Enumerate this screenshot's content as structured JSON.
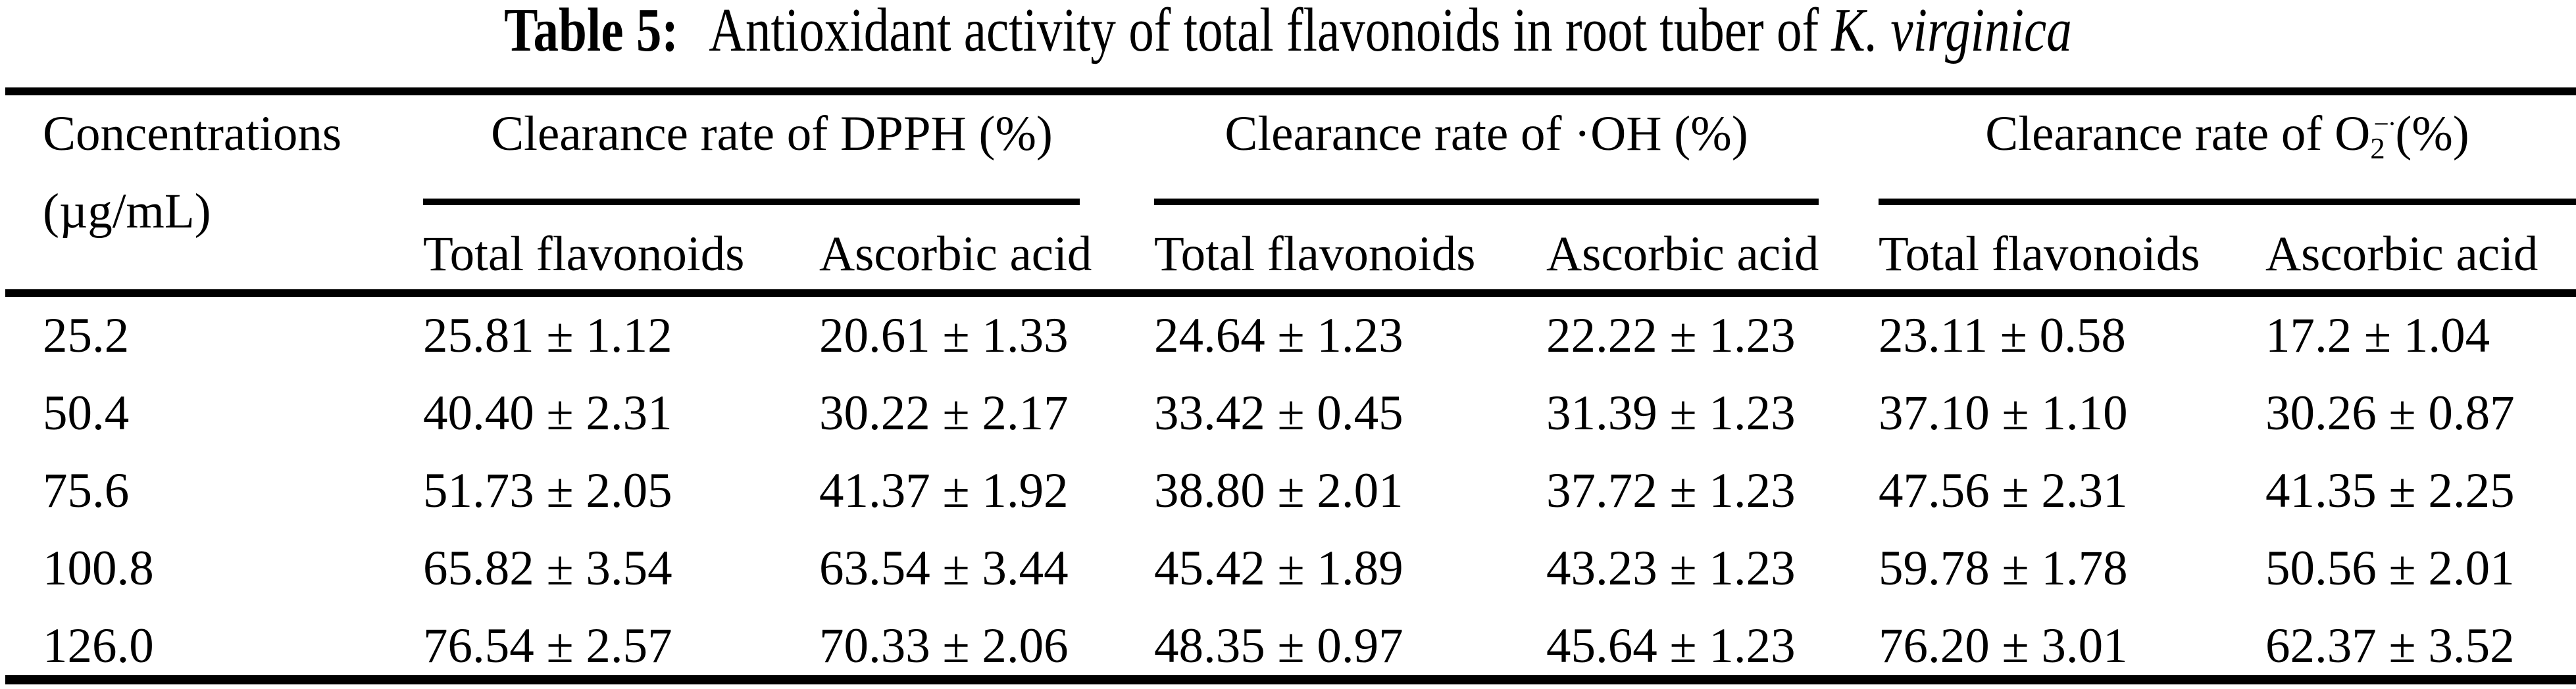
{
  "title": {
    "label": "Table 5:",
    "text": "Antioxidant activity of total flavonoids in root tuber of",
    "species": "K. virginica"
  },
  "table": {
    "concentration_header": {
      "line1": "Concentrations",
      "line2": "(µg/mL)"
    },
    "groups": {
      "dpph": {
        "label": "Clearance rate of DPPH (%)"
      },
      "oh": {
        "label": "Clearance rate of ·OH (%)"
      },
      "o2": {
        "prefix": "Clearance rate of O",
        "sub": "2",
        "sup": "−·",
        "suffix": "(%)"
      }
    },
    "subheaders": {
      "total_flavonoids": "Total flavonoids",
      "ascorbic_acid": "Ascorbic acid"
    },
    "rows": [
      {
        "conc": "25.2",
        "dpph_tf": "25.81 ± 1.12",
        "dpph_aa": "20.61 ± 1.33",
        "oh_tf": "24.64 ± 1.23",
        "oh_aa": "22.22 ± 1.23",
        "o2_tf": "23.11 ± 0.58",
        "o2_aa": "17.2 ± 1.04"
      },
      {
        "conc": "50.4",
        "dpph_tf": "40.40 ± 2.31",
        "dpph_aa": "30.22 ± 2.17",
        "oh_tf": "33.42 ± 0.45",
        "oh_aa": "31.39 ± 1.23",
        "o2_tf": "37.10 ± 1.10",
        "o2_aa": "30.26 ± 0.87"
      },
      {
        "conc": "75.6",
        "dpph_tf": "51.73 ± 2.05",
        "dpph_aa": "41.37 ± 1.92",
        "oh_tf": "38.80 ± 2.01",
        "oh_aa": "37.72 ± 1.23",
        "o2_tf": "47.56 ± 2.31",
        "o2_aa": "41.35 ± 2.25"
      },
      {
        "conc": "100.8",
        "dpph_tf": "65.82 ± 3.54",
        "dpph_aa": "63.54 ± 3.44",
        "oh_tf": "45.42 ± 1.89",
        "oh_aa": "43.23 ± 1.23",
        "o2_tf": "59.78 ± 1.78",
        "o2_aa": "50.56 ± 2.01"
      },
      {
        "conc": "126.0",
        "dpph_tf": "76.54 ± 2.57",
        "dpph_aa": "70.33 ± 2.06",
        "oh_tf": "48.35 ± 0.97",
        "oh_aa": "45.64 ± 1.23",
        "o2_tf": "76.20 ± 3.01",
        "o2_aa": "62.37 ± 3.52"
      }
    ]
  }
}
